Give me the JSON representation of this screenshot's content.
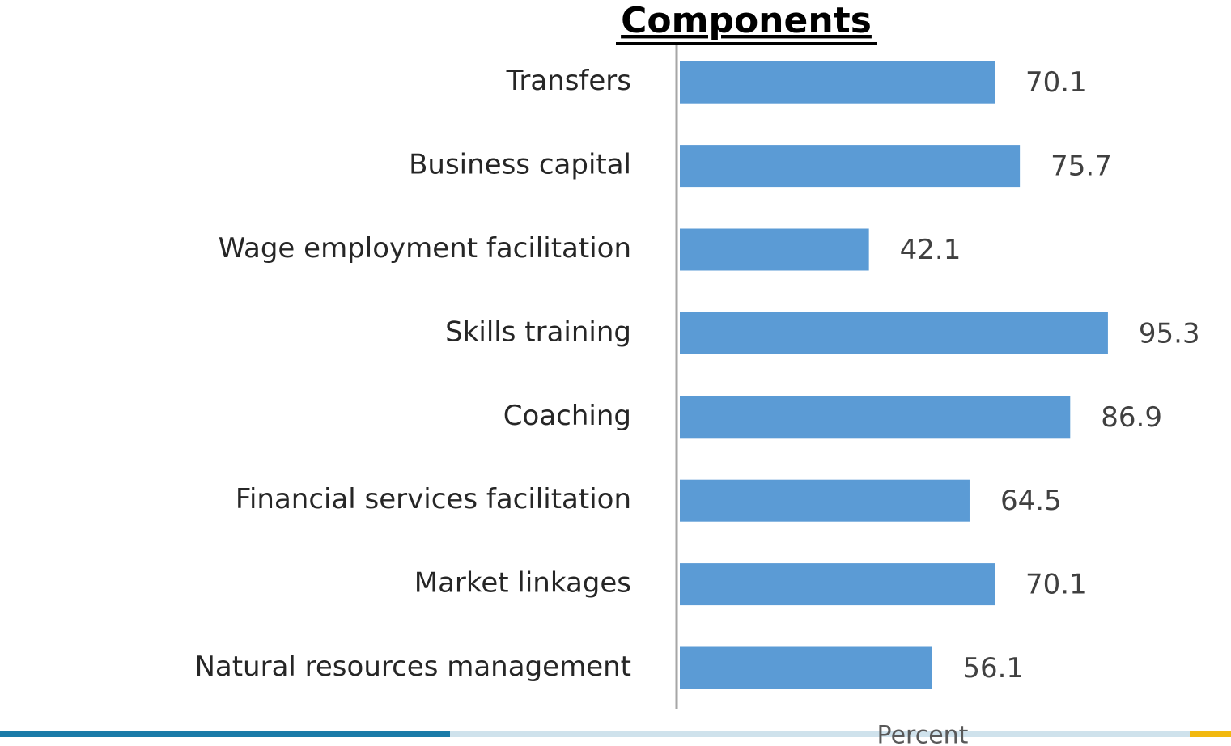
{
  "chart_data": {
    "type": "bar",
    "orientation": "horizontal",
    "title": "Components",
    "xlabel": "Percent",
    "categories": [
      "Transfers",
      "Business capital",
      "Wage employment facilitation",
      "Skills training",
      "Coaching",
      "Financial services facilitation",
      "Market linkages",
      "Natural resources management"
    ],
    "values": [
      70.1,
      75.7,
      42.1,
      95.3,
      86.9,
      64.5,
      70.1,
      56.1
    ],
    "value_labels": [
      "70.1",
      "75.7",
      "42.1",
      "95.3",
      "86.9",
      "64.5",
      "70.1",
      "56.1"
    ],
    "color": "#5b9bd5",
    "xlim": [
      0,
      100
    ],
    "grid": false
  }
}
